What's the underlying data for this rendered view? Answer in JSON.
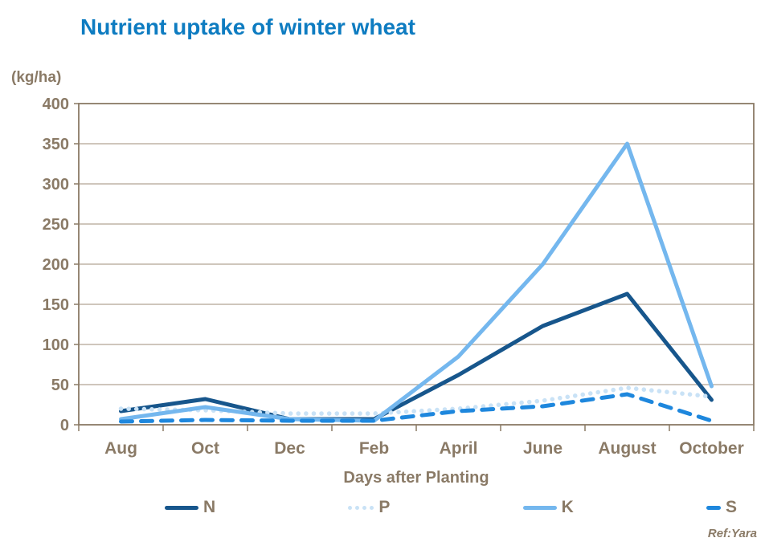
{
  "page": {
    "ref_note": "Ref:Yara"
  },
  "chart_data": {
    "type": "line",
    "title": "Nutrient uptake of winter wheat",
    "y_unit_label": "(kg/ha)",
    "xlabel": "Days after Planting",
    "ylabel": "",
    "categories": [
      "Aug",
      "Oct",
      "Dec",
      "Feb",
      "April",
      "June",
      "August",
      "October"
    ],
    "series": [
      {
        "name": "N",
        "style": "solid",
        "color": "#17568c",
        "values": [
          17,
          32,
          7,
          7,
          62,
          123,
          163,
          31
        ]
      },
      {
        "name": "P",
        "style": "dotted",
        "color": "#c9e2f6",
        "values": [
          20,
          18,
          14,
          14,
          20,
          30,
          46,
          35
        ]
      },
      {
        "name": "K",
        "style": "solid",
        "color": "#74b7ee",
        "values": [
          7,
          22,
          7,
          5,
          85,
          200,
          350,
          48
        ]
      },
      {
        "name": "S",
        "style": "dashed",
        "color": "#1e87dd",
        "values": [
          4,
          6,
          5,
          5,
          17,
          23,
          38,
          5
        ]
      }
    ],
    "ylim": [
      0,
      400
    ],
    "ytick_step": 50,
    "grid": "horizontal",
    "legend_position": "bottom",
    "colors": {
      "title_text": "#0e7cc1",
      "axis_text": "#8a7a66",
      "gridline": "#b2a595",
      "frame": "#8a7a66"
    }
  }
}
